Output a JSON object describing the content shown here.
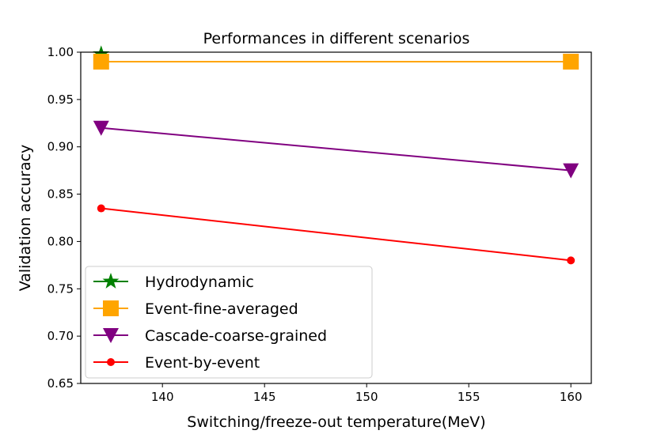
{
  "chart_data": {
    "type": "line",
    "title": "Performances in different scenarios",
    "xlabel": "Switching/freeze-out temperature(MeV)",
    "ylabel": "Validation accuracy",
    "xlim": [
      136,
      161
    ],
    "ylim": [
      0.65,
      1.0
    ],
    "xticks": [
      "140",
      "145",
      "150",
      "155",
      "160"
    ],
    "yticks": [
      "0.65",
      "0.70",
      "0.75",
      "0.80",
      "0.85",
      "0.90",
      "0.95",
      "1.00"
    ],
    "grid": false,
    "legend_position": "lower-left",
    "x": [
      137,
      160
    ],
    "series": [
      {
        "name": "Hydrodynamic",
        "values": [
          0.998,
          null
        ],
        "color": "#008000",
        "marker": "star"
      },
      {
        "name": "Event-fine-averaged",
        "values": [
          0.99,
          0.99
        ],
        "color": "#ffa500",
        "marker": "square"
      },
      {
        "name": "Cascade-coarse-grained",
        "values": [
          0.92,
          0.875
        ],
        "color": "#800080",
        "marker": "triangle-down"
      },
      {
        "name": "Event-by-event",
        "values": [
          0.835,
          0.78
        ],
        "color": "#ff0000",
        "marker": "circle"
      }
    ]
  }
}
